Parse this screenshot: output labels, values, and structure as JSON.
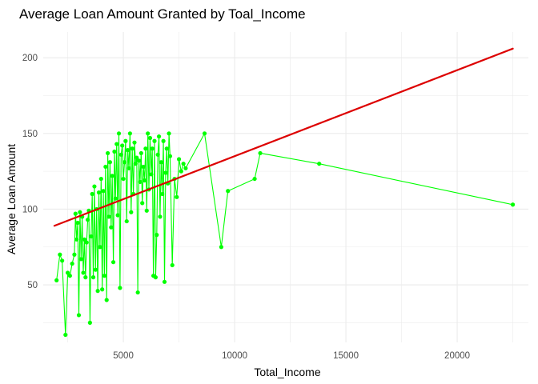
{
  "chart_data": {
    "type": "line",
    "title": "Average Loan Amount Granted by Toal_Income",
    "xlabel": "Total_Income",
    "ylabel": "Average Loan Amount",
    "xlim": [
      1400,
      23200
    ],
    "ylim": [
      12,
      217
    ],
    "x_ticks": [
      5000,
      10000,
      15000,
      20000
    ],
    "x_tick_labels": [
      "5000",
      "10000",
      "15000",
      "20000"
    ],
    "y_ticks": [
      50,
      100,
      150,
      200
    ],
    "y_tick_labels": [
      "50",
      "100",
      "150",
      "200"
    ],
    "grid": true,
    "legend": "none",
    "colors": {
      "series": "#00ff00",
      "trend": "#dd0000",
      "grid": "#ebebeb"
    },
    "series": [
      {
        "values_x": [
          2000,
          2150,
          2250,
          2400,
          2500,
          2600,
          2700,
          2800,
          2850,
          2900,
          2950,
          3000,
          3050,
          3100,
          3150,
          3200,
          3250,
          3300,
          3350,
          3400,
          3450,
          3500,
          3550,
          3600,
          3650,
          3700,
          3750,
          3800,
          3850,
          3900,
          3950,
          4000,
          4050,
          4100,
          4150,
          4200,
          4250,
          4300,
          4350,
          4400,
          4450,
          4500,
          4550,
          4600,
          4650,
          4700,
          4750,
          4800,
          4850,
          4900,
          4950,
          5000,
          5050,
          5100,
          5150,
          5200,
          5250,
          5300,
          5350,
          5400,
          5450,
          5500,
          5550,
          5600,
          5650,
          5700,
          5750,
          5800,
          5850,
          5900,
          5950,
          6000,
          6050,
          6100,
          6150,
          6200,
          6250,
          6300,
          6350,
          6400,
          6450,
          6500,
          6550,
          6600,
          6650,
          6700,
          6750,
          6800,
          6850,
          6900,
          6950,
          7000,
          7050,
          7100,
          7200,
          7300,
          7400,
          7500,
          7600,
          7700,
          7800,
          8650,
          9400,
          9700,
          10900,
          11150,
          13800,
          22500
        ],
        "values_y": [
          53,
          70,
          66,
          17,
          58,
          56,
          64,
          70,
          97,
          80,
          91,
          30,
          98,
          67,
          95,
          58,
          80,
          55,
          78,
          93,
          99,
          25,
          82,
          110,
          55,
          115,
          60,
          100,
          46,
          111,
          75,
          120,
          47,
          112,
          56,
          128,
          40,
          137,
          95,
          131,
          88,
          122,
          65,
          138,
          107,
          143,
          96,
          150,
          48,
          136,
          142,
          120,
          131,
          145,
          92,
          139,
          127,
          150,
          98,
          140,
          110,
          144,
          130,
          134,
          45,
          132,
          118,
          137,
          104,
          128,
          119,
          140,
          99,
          150,
          113,
          147,
          123,
          140,
          56,
          145,
          55,
          83,
          136,
          148,
          95,
          131,
          110,
          145,
          52,
          124,
          140,
          117,
          150,
          135,
          63,
          120,
          108,
          133,
          125,
          130,
          127,
          150,
          75,
          112,
          120,
          137,
          130,
          103
        ]
      },
      {
        "values_x": [
          1900,
          22500
        ],
        "values_y": [
          89,
          206
        ]
      }
    ]
  }
}
